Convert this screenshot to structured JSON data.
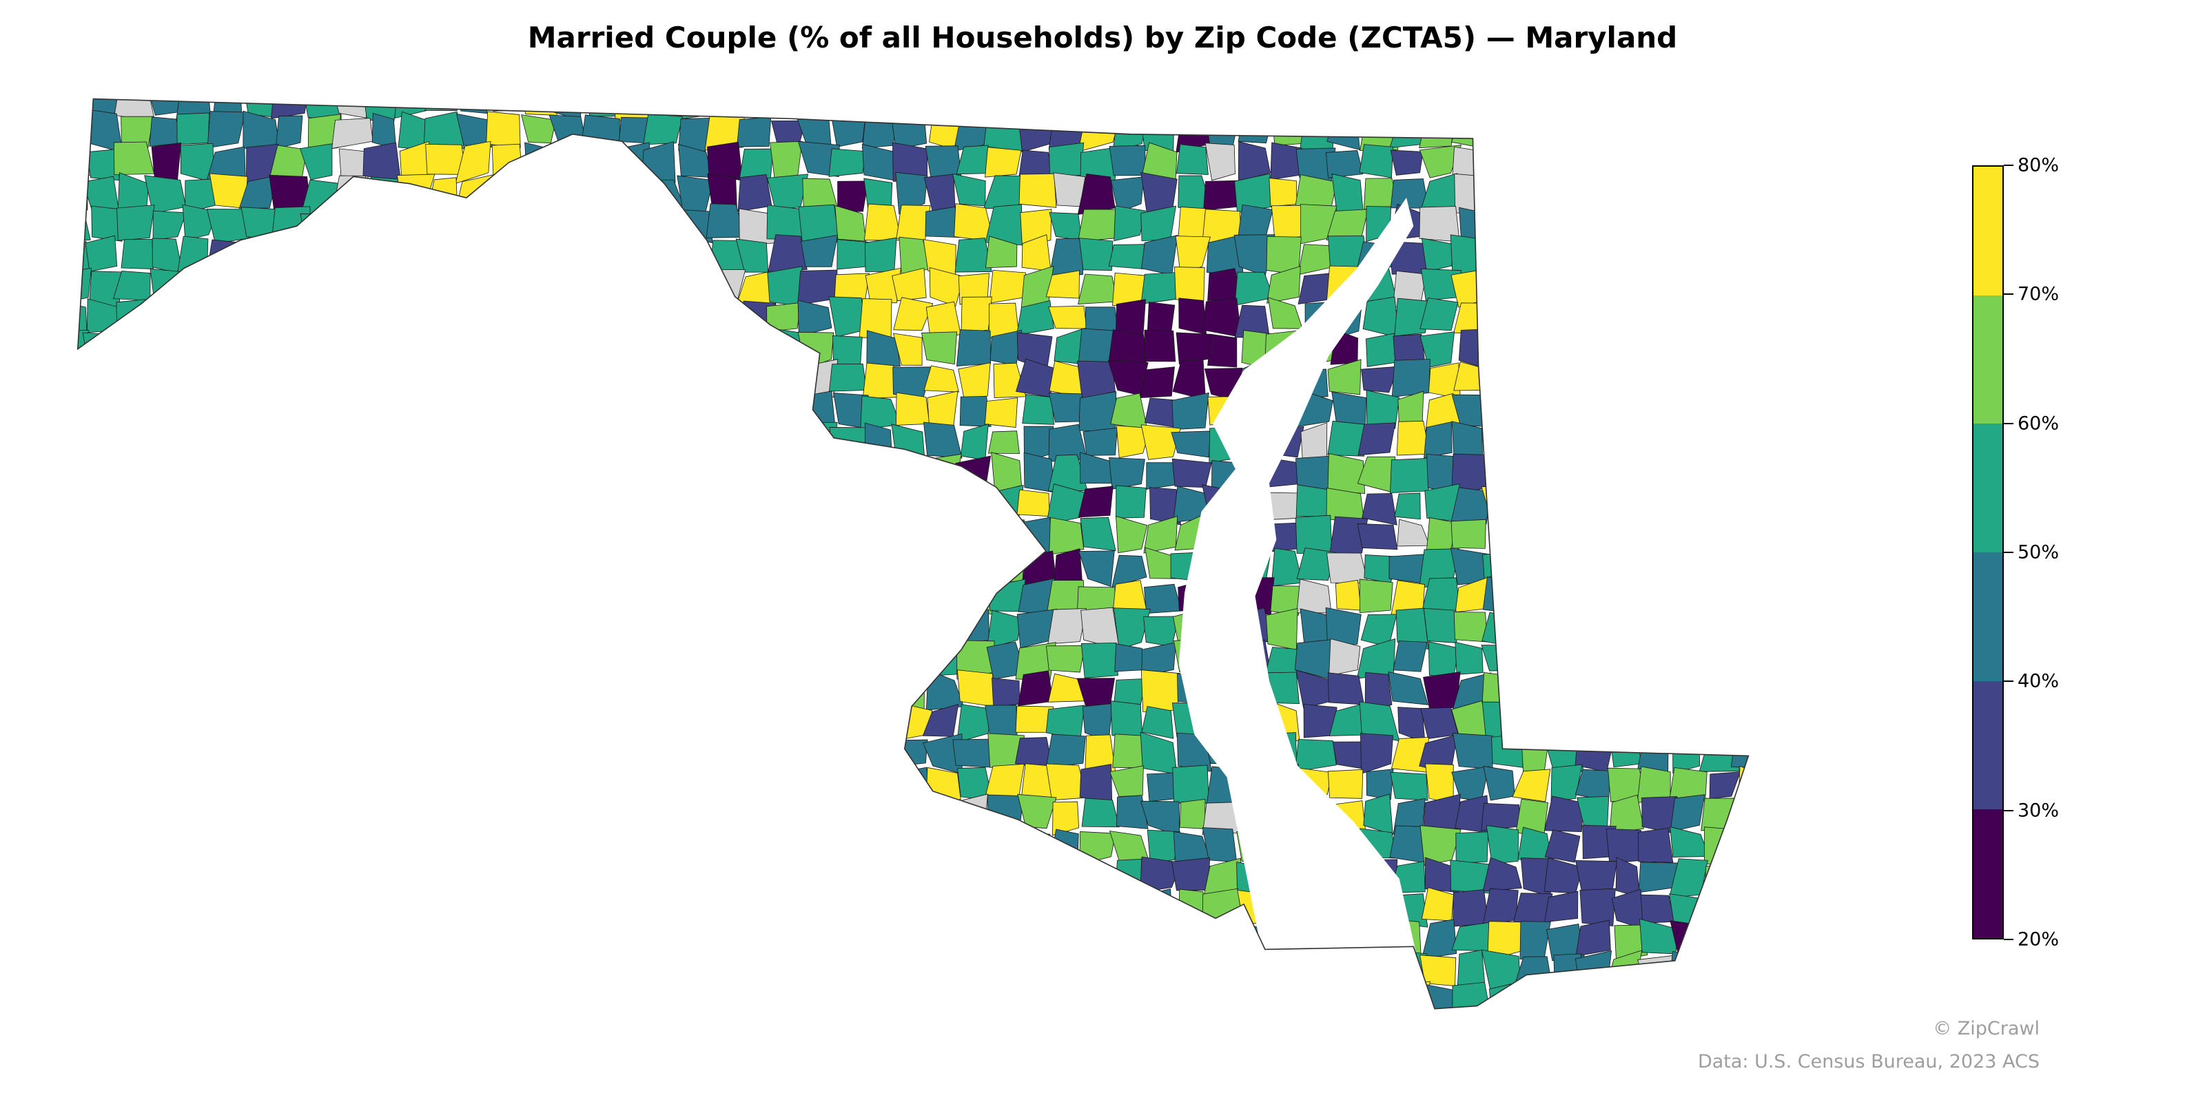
{
  "chart_data": {
    "type": "choropleth",
    "title": "Married Couple (% of all Households) by Zip Code (ZCTA5) — Maryland",
    "region": "Maryland",
    "geography": "Zip Code (ZCTA5)",
    "colorbar": {
      "range": [
        20,
        80
      ],
      "ticks": [
        "20%",
        "30%",
        "40%",
        "50%",
        "60%",
        "70%",
        "80%"
      ],
      "bins": [
        {
          "range": [
            20,
            30
          ],
          "color": "#440154"
        },
        {
          "range": [
            30,
            40
          ],
          "color": "#414487"
        },
        {
          "range": [
            40,
            50
          ],
          "color": "#2a788e"
        },
        {
          "range": [
            50,
            60
          ],
          "color": "#22a884"
        },
        {
          "range": [
            60,
            70
          ],
          "color": "#7ad151"
        },
        {
          "range": [
            70,
            80
          ],
          "color": "#fde725"
        }
      ],
      "no_data_color": "#d3d3d3",
      "placement": "right"
    }
  },
  "credits": {
    "copyright": "© ZipCrawl",
    "source": "Data: U.S. Census Bureau, 2023 ACS"
  }
}
